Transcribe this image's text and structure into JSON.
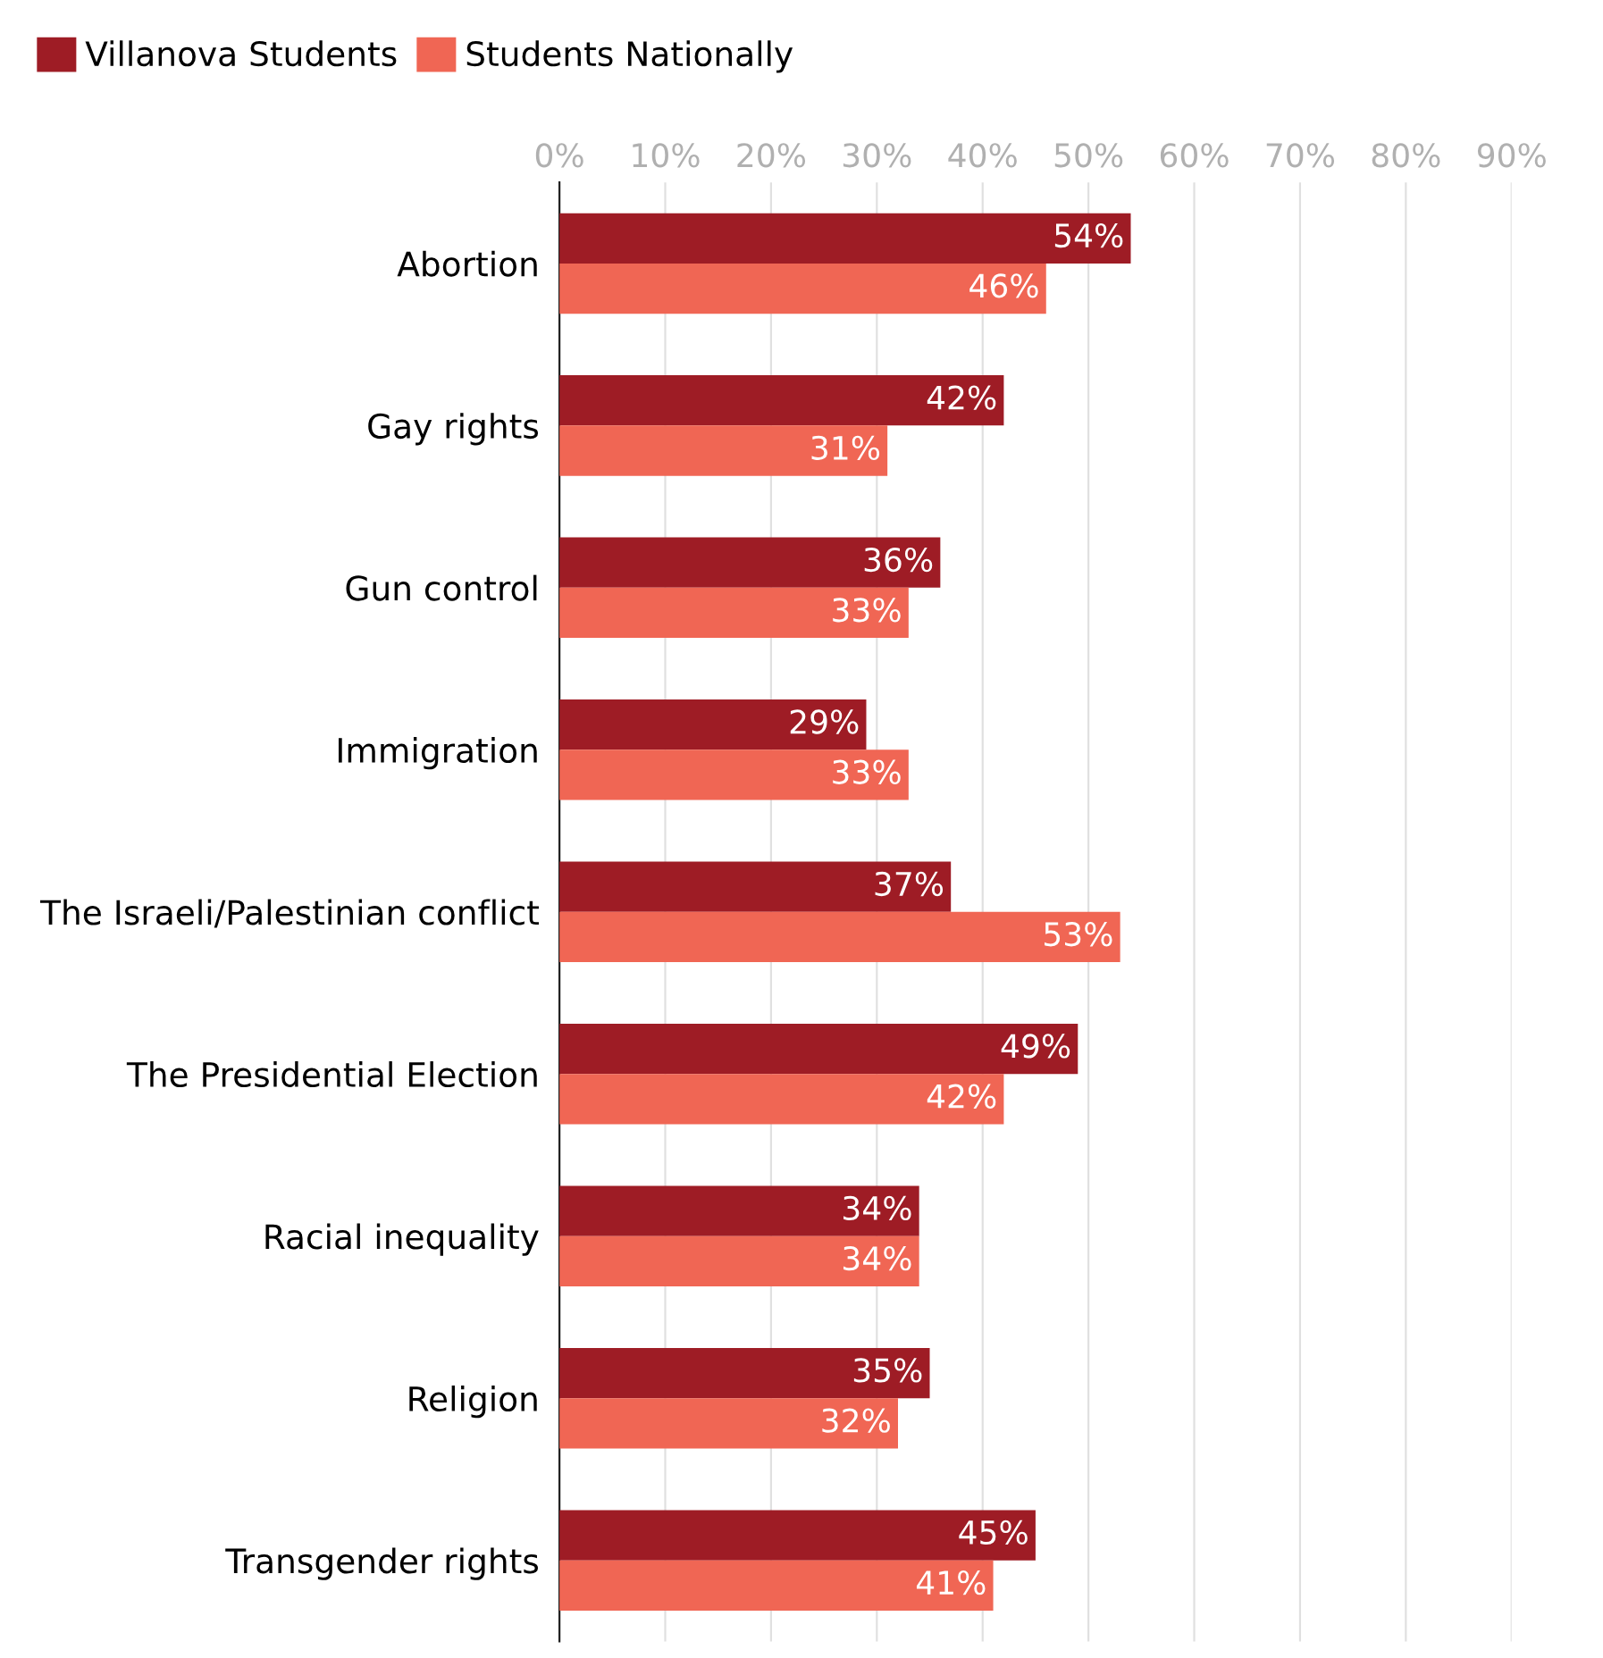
{
  "chart_data": {
    "type": "bar",
    "orientation": "horizontal",
    "categories": [
      "Abortion",
      "Gay rights",
      "Gun control",
      "Immigration",
      "The Israeli/Palestinian conflict",
      "The Presidential Election",
      "Racial inequality",
      "Religion",
      "Transgender rights"
    ],
    "series": [
      {
        "name": "Villanova Students",
        "color": "#9e1c25",
        "values": [
          54,
          42,
          36,
          29,
          37,
          49,
          34,
          35,
          45
        ],
        "value_labels": [
          "54%",
          "42%",
          "36%",
          "29%",
          "37%",
          "49%",
          "34%",
          "35%",
          "45%"
        ]
      },
      {
        "name": "Students Nationally",
        "color": "#f06654",
        "values": [
          46,
          31,
          33,
          33,
          53,
          42,
          34,
          32,
          41
        ],
        "value_labels": [
          "46%",
          "31%",
          "33%",
          "33%",
          "53%",
          "42%",
          "34%",
          "32%",
          "41%"
        ]
      }
    ],
    "xlim": [
      0,
      90
    ],
    "xticks": [
      {
        "value": 0,
        "label": "0%"
      },
      {
        "value": 10,
        "label": "10%"
      },
      {
        "value": 20,
        "label": "20%"
      },
      {
        "value": 30,
        "label": "30%"
      },
      {
        "value": 40,
        "label": "40%"
      },
      {
        "value": 50,
        "label": "50%"
      },
      {
        "value": 60,
        "label": "60%"
      },
      {
        "value": 70,
        "label": "70%"
      },
      {
        "value": 80,
        "label": "80%"
      },
      {
        "value": 90,
        "label": "90%"
      }
    ],
    "grid": "x",
    "legend": "top left"
  }
}
